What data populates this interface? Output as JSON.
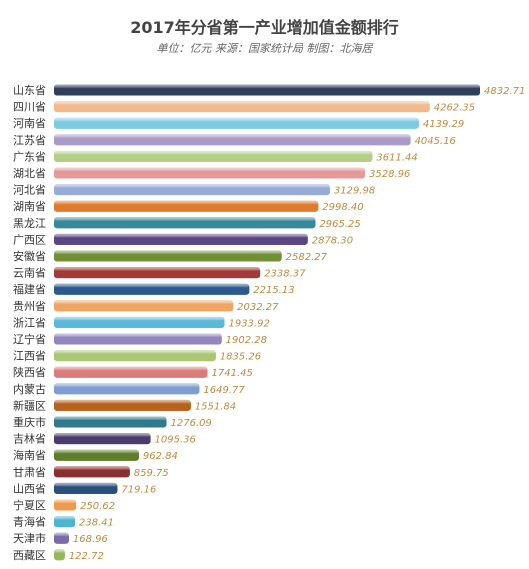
{
  "chart_data": {
    "type": "bar",
    "orientation": "horizontal",
    "title": "2017年分省第一产业增加值金额排行",
    "subtitle": "单位：亿元 来源：国家统计局 制图：北海居",
    "categories": [
      "山东省",
      "四川省",
      "河南省",
      "江苏省",
      "广东省",
      "湖北省",
      "河北省",
      "湖南省",
      "黑龙江",
      "广西区",
      "安徽省",
      "云南省",
      "福建省",
      "贵州省",
      "浙江省",
      "辽宁省",
      "江西省",
      "陕西省",
      "内蒙古",
      "新疆区",
      "重庆市",
      "吉林省",
      "海南省",
      "甘肃省",
      "山西省",
      "宁夏区",
      "青海省",
      "天津市",
      "西藏区"
    ],
    "values": [
      4832.71,
      4262.35,
      4139.29,
      4045.16,
      3611.44,
      3528.96,
      3129.98,
      2998.4,
      2965.25,
      2878.3,
      2582.27,
      2338.37,
      2215.13,
      2032.27,
      1933.92,
      1902.28,
      1835.26,
      1741.45,
      1649.77,
      1551.84,
      1276.09,
      1095.36,
      962.84,
      859.75,
      719.16,
      250.62,
      238.41,
      168.96,
      122.72
    ],
    "value_labels": [
      "4832.71",
      "4262.35",
      "4139.29",
      "4045.16",
      "3611.44",
      "3528.96",
      "3129.98",
      "2998.40",
      "2965.25",
      "2878.30",
      "2582.27",
      "2338.37",
      "2215.13",
      "2032.27",
      "1933.92",
      "1902.28",
      "1835.26",
      "1741.45",
      "1649.77",
      "1551.84",
      "1276.09",
      "1095.36",
      "962.84",
      "859.75",
      "719.16",
      "250.62",
      "238.41",
      "168.96",
      "122.72"
    ],
    "colors": [
      "#2f3f5c",
      "#f2b98a",
      "#7ccbe0",
      "#a99ac9",
      "#b3cf86",
      "#e59a9a",
      "#96acd6",
      "#e07b2a",
      "#35899a",
      "#5a4683",
      "#6f9035",
      "#a33a3a",
      "#2c5a8e",
      "#f2a462",
      "#5ab8d8",
      "#9184bf",
      "#a8c674",
      "#db7a7a",
      "#7e9ed0",
      "#b8621e",
      "#2e7a8c",
      "#4a3c6e",
      "#5f7e2c",
      "#8a2f2f",
      "#2a4e7e",
      "#f09a4e",
      "#4fb3d2",
      "#7a6aa9",
      "#96b85c"
    ],
    "xlim": [
      0,
      4832.71
    ],
    "grid": false,
    "legend": "none"
  }
}
